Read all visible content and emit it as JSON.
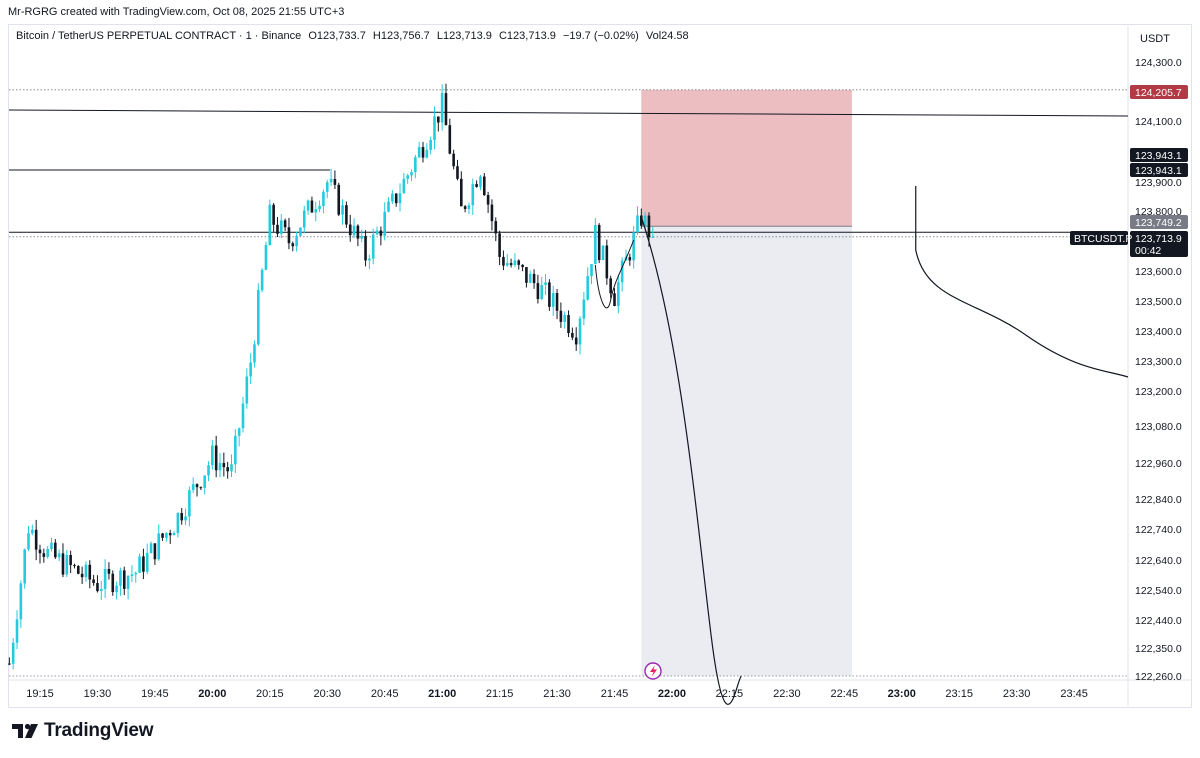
{
  "credit": "Mr-RGRG created with TradingView.com, Oct 08, 2025 21:55 UTC+3",
  "header": {
    "symbol": "Bitcoin / TetherUS PERPETUAL CONTRACT · 1 · Binance",
    "open": "O123,733.7",
    "high": "H123,756.7",
    "low": "L123,713.9",
    "close": "C123,713.9",
    "change": "−19.7 (−0.02%)",
    "volume": "Vol24.58"
  },
  "unit": "USDT",
  "brand": "TradingView",
  "colors": {
    "up": "#22ccdd",
    "down": "#131722",
    "stop_zone": "#e6a8ae",
    "target_zone": "#e8e9ee",
    "label_dark": "#131722",
    "stop_label": "#b23a45",
    "entry_label": "#787b86"
  },
  "chart_data": {
    "type": "candlestick",
    "x_ticks": [
      "19:15",
      "19:30",
      "19:45",
      "20:00",
      "20:15",
      "20:30",
      "20:45",
      "21:00",
      "21:15",
      "21:30",
      "21:45",
      "22:00",
      "22:15",
      "22:30",
      "22:45",
      "23:00",
      "23:15",
      "23:30",
      "23:45"
    ],
    "bold_ticks": [
      "20:00",
      "21:00",
      "22:00",
      "23:00"
    ],
    "y_ticks": [
      "124,300.0",
      "124,100.0",
      "123,900.0",
      "123,800.0",
      "123,600.0",
      "123,500.0",
      "123,400.0",
      "123,300.0",
      "123,200.0",
      "123,080.0",
      "122,960.0",
      "122,840.0",
      "122,740.0",
      "122,640.0",
      "122,540.0",
      "122,440.0",
      "122,350.0",
      "122,260.0"
    ],
    "price_labels": [
      {
        "text": "124,205.7",
        "kind": "stop"
      },
      {
        "text": "123,943.1",
        "kind": "dark"
      },
      {
        "text": "123,943.1",
        "kind": "dark"
      },
      {
        "text": "123,749.2",
        "kind": "entry"
      },
      {
        "text": "123,713.9",
        "kind": "dark"
      },
      {
        "text": "00:42",
        "kind": "dark"
      }
    ],
    "symbol_tag": "BTCUSDT.P",
    "position": {
      "direction": "short",
      "entry": 123749.2,
      "stop": 124205.7,
      "target": 122260.0,
      "start": "21:52",
      "end": "22:47"
    },
    "horizontal_levels": [
      124205.7,
      123943.1,
      123749.2,
      123713.9,
      122260.0
    ],
    "ohlc_key_points": [
      {
        "t": "19:07",
        "c": 122300
      },
      {
        "t": "19:12",
        "c": 122750
      },
      {
        "t": "19:17",
        "c": 122660
      },
      {
        "t": "19:30",
        "c": 122560
      },
      {
        "t": "19:40",
        "c": 122600
      },
      {
        "t": "19:50",
        "c": 122760
      },
      {
        "t": "20:00",
        "c": 122980
      },
      {
        "t": "20:05",
        "c": 122930
      },
      {
        "t": "20:10",
        "c": 123300
      },
      {
        "t": "20:15",
        "c": 123780
      },
      {
        "t": "20:20",
        "c": 123700
      },
      {
        "t": "20:30",
        "c": 123900
      },
      {
        "t": "20:40",
        "c": 123650
      },
      {
        "t": "20:50",
        "c": 123900
      },
      {
        "t": "21:00",
        "c": 124150
      },
      {
        "t": "21:05",
        "c": 123800
      },
      {
        "t": "21:10",
        "c": 123950
      },
      {
        "t": "21:15",
        "c": 123650
      },
      {
        "t": "21:25",
        "c": 123550
      },
      {
        "t": "21:35",
        "c": 123400
      },
      {
        "t": "21:40",
        "c": 123720
      },
      {
        "t": "21:45",
        "c": 123520
      },
      {
        "t": "21:52",
        "c": 123780
      },
      {
        "t": "21:55",
        "c": 123713.9
      }
    ]
  }
}
